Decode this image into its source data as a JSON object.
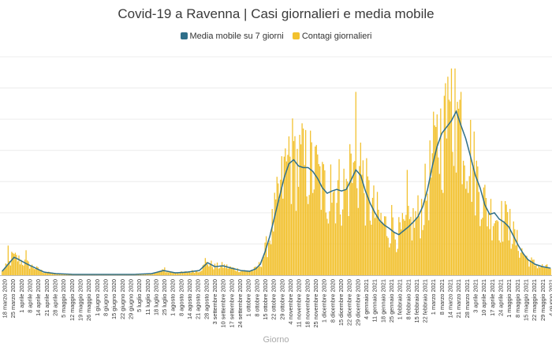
{
  "chart_data": {
    "type": "bar+line",
    "title": "Covid-19 a Ravenna | Casi giornalieri e media mobile",
    "xlabel": "Giorno",
    "ylabel": "",
    "ylim": [
      0,
      280
    ],
    "grid": true,
    "legend_position": "top",
    "series": [
      {
        "name": "Media mobile su 7 giorni",
        "type": "line",
        "color": "#2f6f8a"
      },
      {
        "name": "Contagi giornalieri",
        "type": "bar",
        "color": "#f2c12e"
      }
    ],
    "tick_labels": [
      "18 marzo 2020",
      "25 marzo 2020",
      "1 aprile 2020",
      "8 aprile 2020",
      "14 aprile 2020",
      "21 aprile 2020",
      "28 aprile 2020",
      "5 maggio 2020",
      "12 maggio 2020",
      "19 maggio 2020",
      "26 maggio 2020",
      "1 giugno 2020",
      "8 giugno 2020",
      "15 giugno 2020",
      "22 giugno 2020",
      "29 giugno 2020",
      "5 luglio 2020",
      "11 luglio 2020",
      "18 luglio 2020",
      "25 luglio 2020",
      "1 agosto 2020",
      "8 agosto 2020",
      "14 agosto 2020",
      "21 agosto 2020",
      "28 agosto 2020",
      "3 settembre 2020",
      "10 settembre 2020",
      "17 settembre 2020",
      "24 settembre 2020",
      "1 ottobre 2020",
      "8 ottobre 2020",
      "15 ottobre 2020",
      "22 ottobre 2020",
      "29 ottobre 2020",
      "4 novembre 2020",
      "11 novembre 2020",
      "18 novembre 2020",
      "25 novembre 2020",
      "1 dicembre 2020",
      "8 dicembre 2020",
      "15 dicembre 2020",
      "22 dicembre 2020",
      "29 dicembre 2020",
      "4 gennaio 2021",
      "11 gennaio 2021",
      "18 gennaio 2021",
      "25 gennaio 2021",
      "1 febbraio 2021",
      "8 febbraio 2021",
      "15 febbraio 2021",
      "22 febbraio 2021",
      "1 marzo 2021",
      "8 marzo 2021",
      "14 marzo 2021",
      "21 marzo 2021",
      "28 marzo 2021",
      "3 aprile 2021",
      "10 aprile 2021",
      "17 aprile 2021",
      "24 aprile 2021",
      "1 maggio 2021",
      "8 maggio 2021",
      "15 maggio 2021",
      "22 maggio 2021",
      "29 maggio 2021",
      "4 giugno 2021"
    ],
    "moving_average_keypoints": [
      {
        "day": 0,
        "value": 5
      },
      {
        "day": 5,
        "value": 14
      },
      {
        "day": 10,
        "value": 23
      },
      {
        "day": 14,
        "value": 20
      },
      {
        "day": 20,
        "value": 15
      },
      {
        "day": 28,
        "value": 9
      },
      {
        "day": 35,
        "value": 4
      },
      {
        "day": 45,
        "value": 2
      },
      {
        "day": 60,
        "value": 1
      },
      {
        "day": 80,
        "value": 1
      },
      {
        "day": 95,
        "value": 1
      },
      {
        "day": 110,
        "value": 1
      },
      {
        "day": 125,
        "value": 2
      },
      {
        "day": 135,
        "value": 6
      },
      {
        "day": 145,
        "value": 3
      },
      {
        "day": 155,
        "value": 4
      },
      {
        "day": 165,
        "value": 6
      },
      {
        "day": 172,
        "value": 16
      },
      {
        "day": 178,
        "value": 11
      },
      {
        "day": 185,
        "value": 12
      },
      {
        "day": 192,
        "value": 9
      },
      {
        "day": 200,
        "value": 6
      },
      {
        "day": 207,
        "value": 5
      },
      {
        "day": 212,
        "value": 8
      },
      {
        "day": 216,
        "value": 14
      },
      {
        "day": 220,
        "value": 30
      },
      {
        "day": 224,
        "value": 50
      },
      {
        "day": 228,
        "value": 75
      },
      {
        "day": 232,
        "value": 100
      },
      {
        "day": 236,
        "value": 125
      },
      {
        "day": 240,
        "value": 143
      },
      {
        "day": 244,
        "value": 148
      },
      {
        "day": 248,
        "value": 140
      },
      {
        "day": 252,
        "value": 138
      },
      {
        "day": 256,
        "value": 138
      },
      {
        "day": 260,
        "value": 133
      },
      {
        "day": 264,
        "value": 124
      },
      {
        "day": 268,
        "value": 112
      },
      {
        "day": 272,
        "value": 105
      },
      {
        "day": 276,
        "value": 108
      },
      {
        "day": 280,
        "value": 110
      },
      {
        "day": 284,
        "value": 108
      },
      {
        "day": 288,
        "value": 110
      },
      {
        "day": 292,
        "value": 122
      },
      {
        "day": 296,
        "value": 135
      },
      {
        "day": 300,
        "value": 128
      },
      {
        "day": 304,
        "value": 108
      },
      {
        "day": 308,
        "value": 92
      },
      {
        "day": 312,
        "value": 80
      },
      {
        "day": 316,
        "value": 70
      },
      {
        "day": 320,
        "value": 64
      },
      {
        "day": 324,
        "value": 60
      },
      {
        "day": 328,
        "value": 55
      },
      {
        "day": 332,
        "value": 52
      },
      {
        "day": 336,
        "value": 57
      },
      {
        "day": 340,
        "value": 62
      },
      {
        "day": 344,
        "value": 68
      },
      {
        "day": 348,
        "value": 75
      },
      {
        "day": 352,
        "value": 88
      },
      {
        "day": 356,
        "value": 110
      },
      {
        "day": 360,
        "value": 140
      },
      {
        "day": 364,
        "value": 165
      },
      {
        "day": 368,
        "value": 182
      },
      {
        "day": 372,
        "value": 190
      },
      {
        "day": 376,
        "value": 198
      },
      {
        "day": 380,
        "value": 210
      },
      {
        "day": 384,
        "value": 192
      },
      {
        "day": 388,
        "value": 175
      },
      {
        "day": 392,
        "value": 152
      },
      {
        "day": 396,
        "value": 128
      },
      {
        "day": 400,
        "value": 112
      },
      {
        "day": 404,
        "value": 90
      },
      {
        "day": 408,
        "value": 78
      },
      {
        "day": 412,
        "value": 80
      },
      {
        "day": 416,
        "value": 72
      },
      {
        "day": 420,
        "value": 68
      },
      {
        "day": 424,
        "value": 62
      },
      {
        "day": 428,
        "value": 50
      },
      {
        "day": 432,
        "value": 38
      },
      {
        "day": 436,
        "value": 28
      },
      {
        "day": 440,
        "value": 20
      },
      {
        "day": 446,
        "value": 14
      },
      {
        "day": 452,
        "value": 11
      },
      {
        "day": 459,
        "value": 9
      }
    ],
    "daily_peaks": [
      {
        "day": 5,
        "value": 38
      },
      {
        "day": 8,
        "value": 30
      },
      {
        "day": 20,
        "value": 32
      },
      {
        "day": 136,
        "value": 10
      },
      {
        "day": 170,
        "value": 22
      },
      {
        "day": 236,
        "value": 152
      },
      {
        "day": 240,
        "value": 178
      },
      {
        "day": 244,
        "value": 172
      },
      {
        "day": 252,
        "value": 188
      },
      {
        "day": 262,
        "value": 165
      },
      {
        "day": 275,
        "value": 142
      },
      {
        "day": 291,
        "value": 168
      },
      {
        "day": 296,
        "value": 235
      },
      {
        "day": 300,
        "value": 170
      },
      {
        "day": 326,
        "value": 90
      },
      {
        "day": 339,
        "value": 135
      },
      {
        "day": 363,
        "value": 190
      },
      {
        "day": 370,
        "value": 230
      },
      {
        "day": 374,
        "value": 225
      },
      {
        "day": 376,
        "value": 265
      },
      {
        "day": 379,
        "value": 265
      },
      {
        "day": 384,
        "value": 235
      },
      {
        "day": 421,
        "value": 95
      },
      {
        "day": 425,
        "value": 85
      }
    ]
  }
}
